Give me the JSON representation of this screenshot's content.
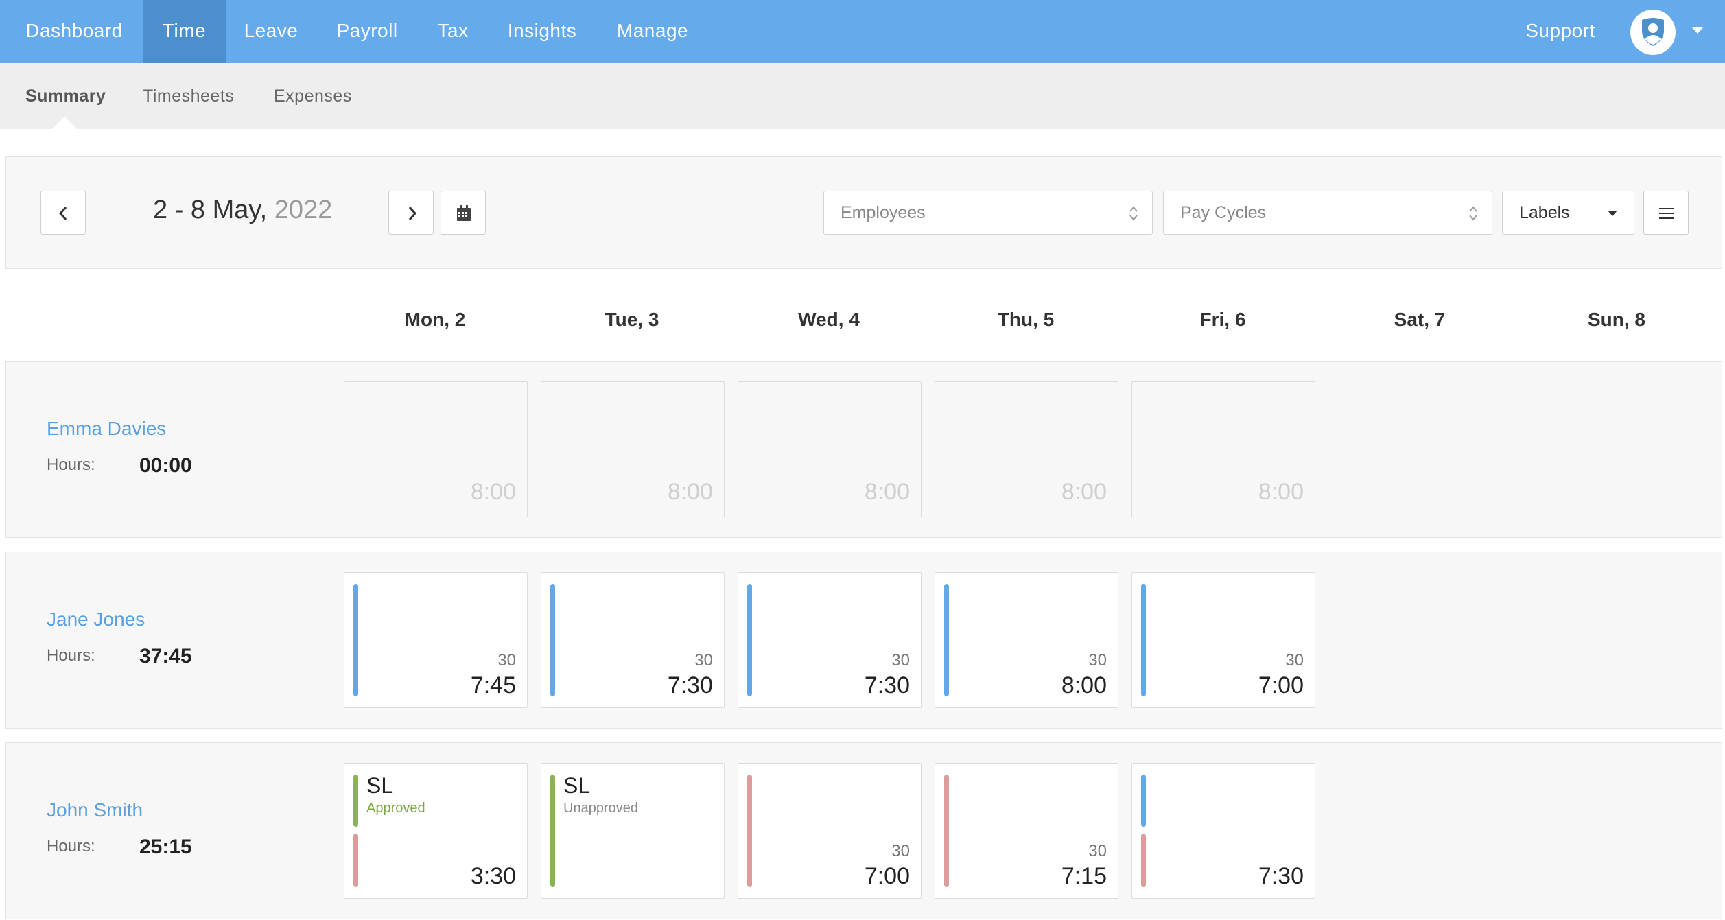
{
  "nav": {
    "items": [
      "Dashboard",
      "Time",
      "Leave",
      "Payroll",
      "Tax",
      "Insights",
      "Manage"
    ],
    "active": "Time",
    "support": "Support"
  },
  "subnav": {
    "items": [
      "Summary",
      "Timesheets",
      "Expenses"
    ],
    "active": "Summary"
  },
  "toolbar": {
    "date_range": "2 - 8 May,",
    "year": "2022",
    "employees_placeholder": "Employees",
    "pay_cycles_placeholder": "Pay Cycles",
    "labels": "Labels"
  },
  "days": [
    "Mon, 2",
    "Tue, 3",
    "Wed, 4",
    "Thu, 5",
    "Fri, 6",
    "Sat, 7",
    "Sun, 8"
  ],
  "hours_label": "Hours:",
  "employees": [
    {
      "name": "Emma Davies",
      "hours": "00:00",
      "cells": [
        {
          "planned": "8:00"
        },
        {
          "planned": "8:00"
        },
        {
          "planned": "8:00"
        },
        {
          "planned": "8:00"
        },
        {
          "planned": "8:00"
        }
      ]
    },
    {
      "name": "Jane Jones",
      "hours": "37:45",
      "cells": [
        {
          "break": "30",
          "total": "7:45"
        },
        {
          "break": "30",
          "total": "7:30"
        },
        {
          "break": "30",
          "total": "7:30"
        },
        {
          "break": "30",
          "total": "8:00"
        },
        {
          "break": "30",
          "total": "7:00"
        }
      ]
    },
    {
      "name": "John Smith",
      "hours": "25:15",
      "cells": [
        {
          "leave_code": "SL",
          "leave_status": "Approved",
          "total": "3:30"
        },
        {
          "leave_code": "SL",
          "leave_status": "Unapproved"
        },
        {
          "break": "30",
          "total": "7:00"
        },
        {
          "break": "30",
          "total": "7:15"
        },
        {
          "total": "7:30"
        }
      ]
    }
  ],
  "colors": {
    "nav": "#65aaeb",
    "nav_active": "#4c8fcd",
    "timesheet_bar": "#62a8e9",
    "leave_bar": "#8bb350",
    "unapproved_bar": "#dc9c9c",
    "link": "#5a9fe0"
  }
}
